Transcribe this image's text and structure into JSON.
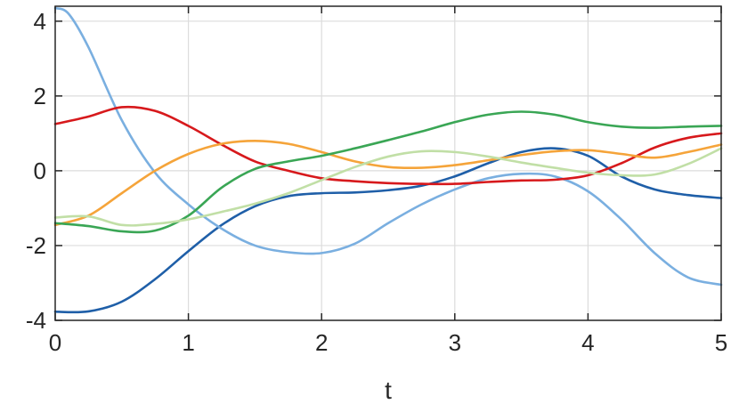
{
  "chart_data": {
    "type": "line",
    "title": "",
    "xlabel": "t",
    "ylabel": "",
    "xlim": [
      0,
      5
    ],
    "ylim": [
      -4,
      4.4
    ],
    "grid": true,
    "xticks": [
      0,
      1,
      2,
      3,
      4,
      5
    ],
    "xtick_labels": [
      "0",
      "1",
      "2",
      "3",
      "4",
      "5"
    ],
    "yticks": [
      -4,
      -2,
      0,
      2,
      4
    ],
    "ytick_labels": [
      "-4",
      "-2",
      "0",
      "2",
      "4"
    ],
    "series": [
      {
        "color": "#1f5fa8",
        "x": [
          0,
          0.25,
          0.5,
          0.75,
          1,
          1.25,
          1.5,
          1.75,
          2,
          2.25,
          2.5,
          2.75,
          3,
          3.25,
          3.5,
          3.75,
          4,
          4.25,
          4.5,
          4.75,
          5
        ],
        "y": [
          -3.77,
          -3.76,
          -3.5,
          -2.9,
          -2.15,
          -1.45,
          -0.95,
          -0.68,
          -0.6,
          -0.58,
          -0.52,
          -0.4,
          -0.15,
          0.2,
          0.5,
          0.6,
          0.4,
          -0.15,
          -0.5,
          -0.65,
          -0.73
        ]
      },
      {
        "color": "#7aafe0",
        "x": [
          0,
          0.1,
          0.25,
          0.5,
          0.75,
          1,
          1.25,
          1.5,
          1.75,
          2,
          2.25,
          2.5,
          2.75,
          3,
          3.25,
          3.5,
          3.75,
          4,
          4.25,
          4.5,
          4.75,
          5
        ],
        "y": [
          4.35,
          4.2,
          3.3,
          1.35,
          -0.05,
          -0.9,
          -1.55,
          -2.0,
          -2.18,
          -2.2,
          -1.95,
          -1.4,
          -0.9,
          -0.5,
          -0.2,
          -0.08,
          -0.15,
          -0.55,
          -1.3,
          -2.2,
          -2.85,
          -3.05
        ]
      },
      {
        "color": "#d7191c",
        "x": [
          0,
          0.25,
          0.5,
          0.75,
          1,
          1.25,
          1.5,
          1.75,
          2,
          2.25,
          2.5,
          2.75,
          3,
          3.25,
          3.5,
          3.75,
          4,
          4.25,
          4.5,
          4.75,
          5
        ],
        "y": [
          1.25,
          1.45,
          1.7,
          1.6,
          1.2,
          0.7,
          0.25,
          0.0,
          -0.2,
          -0.28,
          -0.33,
          -0.35,
          -0.35,
          -0.3,
          -0.26,
          -0.24,
          -0.12,
          0.2,
          0.62,
          0.88,
          1.0
        ]
      },
      {
        "color": "#f5a43a",
        "x": [
          0,
          0.25,
          0.5,
          0.75,
          1,
          1.25,
          1.5,
          1.75,
          2,
          2.25,
          2.5,
          2.75,
          3,
          3.25,
          3.5,
          3.75,
          4,
          4.25,
          4.5,
          4.75,
          5
        ],
        "y": [
          -1.45,
          -1.2,
          -0.6,
          0.0,
          0.45,
          0.72,
          0.8,
          0.72,
          0.5,
          0.25,
          0.1,
          0.08,
          0.15,
          0.28,
          0.42,
          0.52,
          0.55,
          0.45,
          0.35,
          0.5,
          0.7
        ]
      },
      {
        "color": "#3aa655",
        "x": [
          0,
          0.25,
          0.5,
          0.75,
          1,
          1.25,
          1.5,
          1.75,
          2,
          2.25,
          2.5,
          2.75,
          3,
          3.25,
          3.5,
          3.75,
          4,
          4.25,
          4.5,
          4.75,
          5
        ],
        "y": [
          -1.4,
          -1.48,
          -1.62,
          -1.6,
          -1.2,
          -0.45,
          0.05,
          0.25,
          0.4,
          0.6,
          0.82,
          1.05,
          1.3,
          1.5,
          1.58,
          1.5,
          1.3,
          1.18,
          1.15,
          1.18,
          1.2
        ]
      },
      {
        "color": "#c1dfa6",
        "x": [
          0,
          0.25,
          0.5,
          0.75,
          1,
          1.25,
          1.5,
          1.75,
          2,
          2.25,
          2.5,
          2.75,
          3,
          3.25,
          3.5,
          3.75,
          4,
          4.25,
          4.5,
          4.75,
          5
        ],
        "y": [
          -1.25,
          -1.22,
          -1.45,
          -1.42,
          -1.3,
          -1.1,
          -0.88,
          -0.6,
          -0.25,
          0.1,
          0.38,
          0.52,
          0.5,
          0.38,
          0.22,
          0.08,
          -0.05,
          -0.12,
          -0.1,
          0.18,
          0.6
        ]
      }
    ]
  }
}
